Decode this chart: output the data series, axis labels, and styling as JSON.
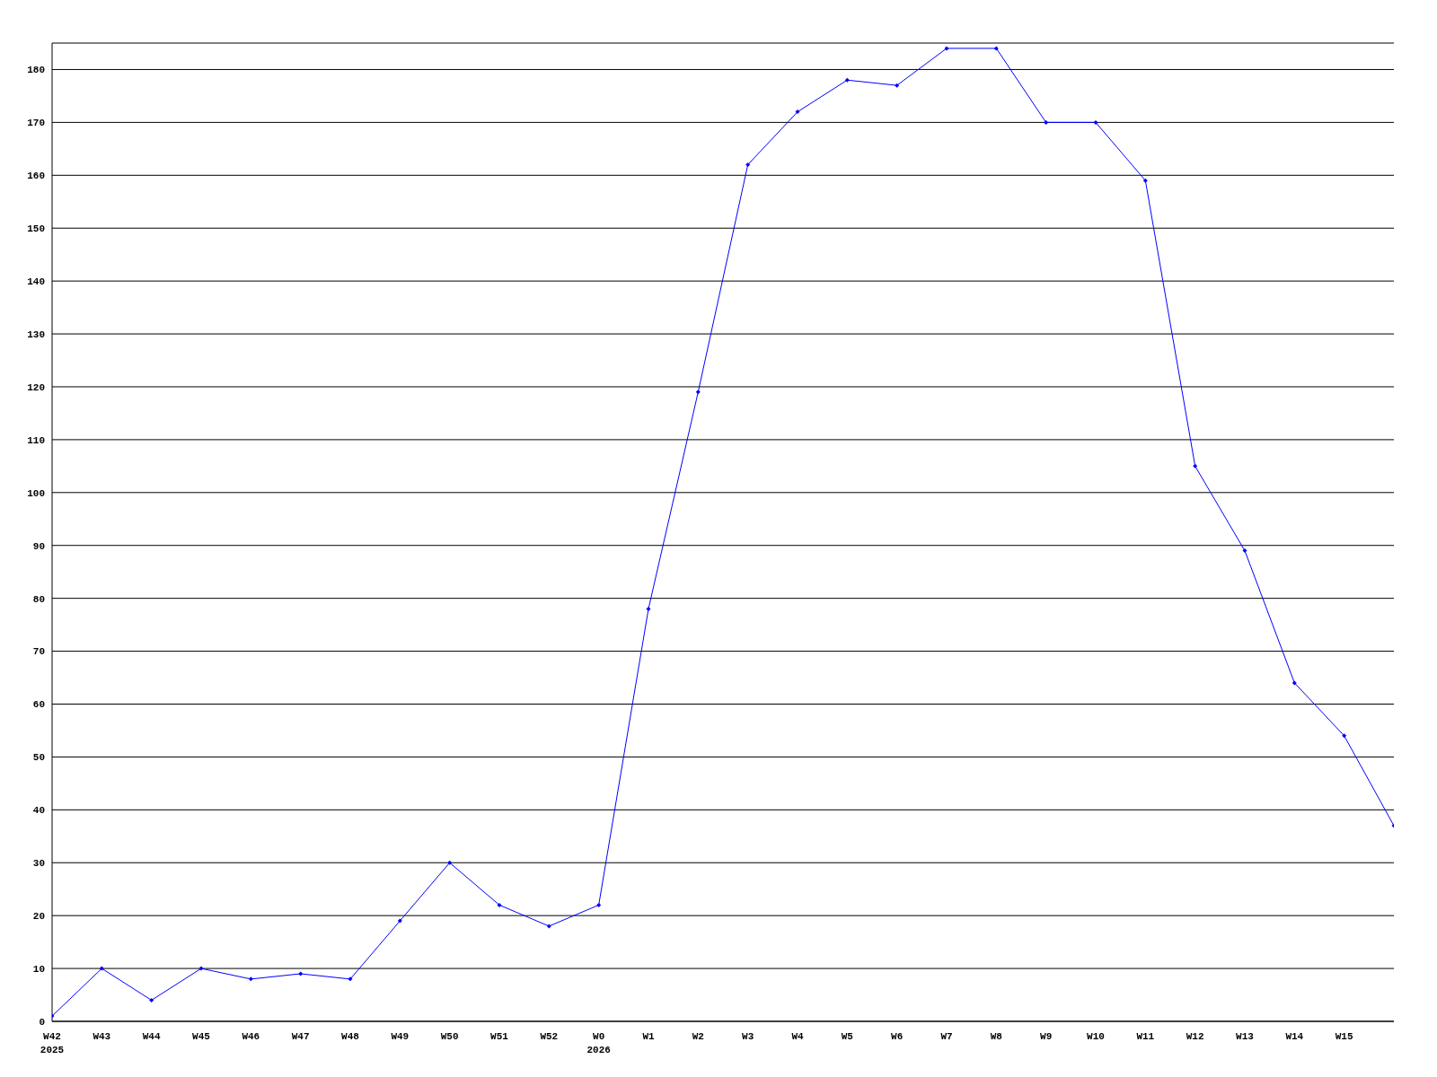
{
  "chart_data": {
    "type": "line",
    "categories": [
      "W42\n2025",
      "W43",
      "W44",
      "W45",
      "W46",
      "W47",
      "W48",
      "W49",
      "W50",
      "W51",
      "W52",
      "W0\n2026",
      "W1",
      "W2",
      "W3",
      "W4",
      "W5",
      "W6",
      "W7",
      "W8",
      "W9",
      "W10",
      "W11",
      "W12",
      "W13",
      "W14",
      "W15",
      null
    ],
    "series": [
      {
        "color": "#0000ff",
        "values": [
          1,
          10,
          4,
          10,
          8,
          9,
          8,
          19,
          30,
          22,
          18,
          22,
          78,
          119,
          162,
          172,
          178,
          177,
          184,
          184,
          170,
          170,
          159,
          105,
          89,
          64,
          54,
          37
        ]
      }
    ],
    "ylim": [
      0,
      185
    ],
    "yticks": [
      0,
      10,
      20,
      30,
      40,
      50,
      60,
      70,
      80,
      90,
      100,
      110,
      120,
      130,
      140,
      150,
      160,
      170,
      180
    ],
    "grid": "y",
    "marker": "diamond",
    "line_style": "solid"
  }
}
